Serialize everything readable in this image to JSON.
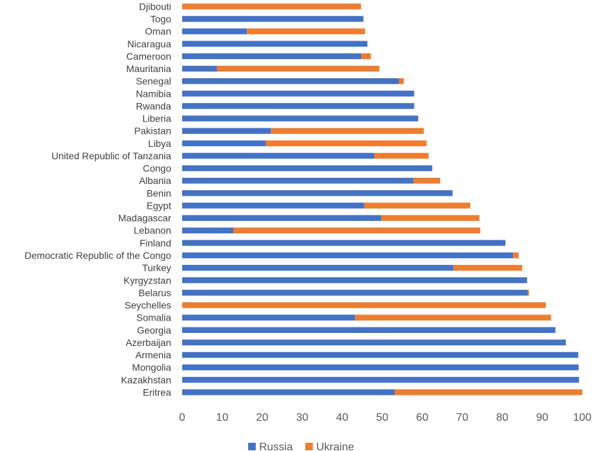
{
  "chart_data": {
    "type": "bar",
    "orientation": "horizontal",
    "stacked": true,
    "categories": [
      "Djibouti",
      "Togo",
      "Oman",
      "Nicaragua",
      "Cameroon",
      "Mauritania",
      "Senegal",
      "Namibia",
      "Rwanda",
      "Liberia",
      "Pakistan",
      "Libya",
      "United Republic of Tanzania",
      "Congo",
      "Albania",
      "Benin",
      "Egypt",
      "Madagascar",
      "Lebanon",
      "Finland",
      "Democratic Republic of the Congo",
      "Turkey",
      "Kyrgyzstan",
      "Belarus",
      "Seychelles",
      "Somalia",
      "Georgia",
      "Azerbaijan",
      "Armenia",
      "Mongolia",
      "Kazakhstan ",
      "Eritrea"
    ],
    "series": [
      {
        "name": "Russia",
        "color": "#4472C4",
        "values": [
          0,
          45.3,
          16.2,
          46.3,
          44.8,
          8.7,
          54.2,
          58,
          58,
          59,
          22.2,
          20.9,
          48,
          62.5,
          57.8,
          67.6,
          45.5,
          49.8,
          12.8,
          80.8,
          82.7,
          67.8,
          86.2,
          86.4,
          0,
          43.2,
          93.3,
          95.9,
          99,
          99.1,
          99.2,
          53.1
        ]
      },
      {
        "name": "Ukraine",
        "color": "#ED7D31",
        "values": [
          44.7,
          0,
          29.5,
          0,
          2.4,
          40.6,
          1.2,
          0,
          0,
          0,
          38.2,
          40.2,
          13.6,
          0,
          6.7,
          0,
          26.5,
          24.5,
          61.7,
          0,
          1.4,
          17.2,
          0,
          0.3,
          90.9,
          49,
          0,
          0,
          0,
          0,
          0,
          46.9
        ]
      }
    ],
    "xlim": [
      0,
      100
    ],
    "xticks": [
      "0",
      "10",
      "20",
      "30",
      "40",
      "50",
      "60",
      "70",
      "80",
      "90",
      "100"
    ],
    "legend": [
      "Russia",
      "Ukraine"
    ],
    "legend_position": "bottom",
    "title": "",
    "xlabel": "",
    "ylabel": ""
  }
}
